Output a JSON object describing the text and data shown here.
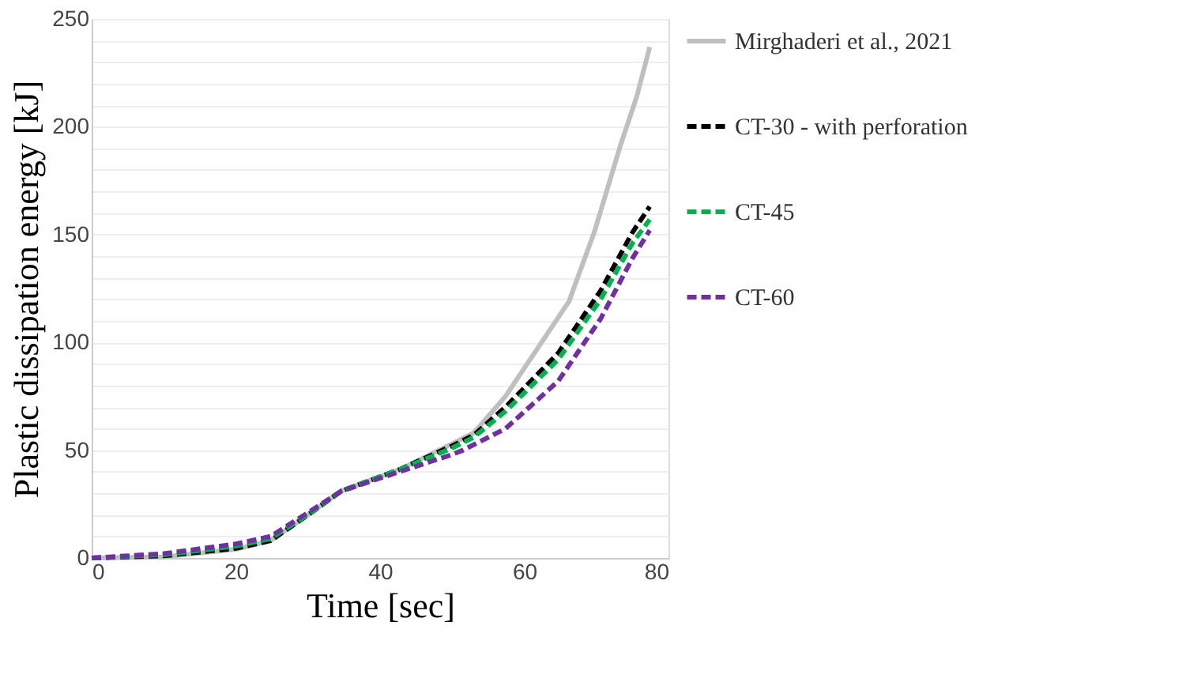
{
  "chart_data": {
    "type": "line",
    "xlabel": "Time  [sec]",
    "ylabel": "Plastic  dissipation  energy  [kJ]",
    "xlim": [
      0,
      80
    ],
    "xticks": [
      0,
      20,
      40,
      60,
      80
    ],
    "ylim": [
      0,
      250
    ],
    "yticks": [
      0,
      {
        "value": 10,
        "label": null
      },
      {
        "value": 20,
        "label": null
      },
      {
        "value": 30,
        "label": null
      },
      {
        "value": 40,
        "label": null
      },
      50,
      {
        "value": 60,
        "label": null
      },
      {
        "value": 70,
        "label": null
      },
      {
        "value": 80,
        "label": null
      },
      {
        "value": 90,
        "label": null
      },
      100,
      {
        "value": 110,
        "label": null
      },
      {
        "value": 120,
        "label": null
      },
      {
        "value": 130,
        "label": null
      },
      {
        "value": 140,
        "label": null
      },
      150,
      {
        "value": 160,
        "label": null
      },
      {
        "value": 170,
        "label": null
      },
      {
        "value": 180,
        "label": null
      },
      {
        "value": 190,
        "label": null
      },
      200,
      {
        "value": 210,
        "label": null
      },
      {
        "value": 220,
        "label": null
      },
      {
        "value": 230,
        "label": null
      },
      {
        "value": 240,
        "label": null
      },
      250
    ],
    "grid": "y",
    "legend": "right",
    "marker": "none",
    "series": [
      {
        "name": "Mirghaderi et al., 2021",
        "color": "#bfbfbf",
        "line_style": "solid",
        "x": [
          0,
          10,
          20,
          24.8,
          30,
          34.6,
          42.7,
          50,
          53,
          57.4,
          61.8,
          66.2,
          69.7,
          73.4,
          75.6,
          77.4
        ],
        "values": [
          0,
          0.5,
          4,
          8,
          20,
          31,
          41,
          53,
          58,
          75,
          97,
          119,
          151,
          192,
          214,
          237
        ]
      },
      {
        "name": "CT-30 - with perforation",
        "color": "#000000",
        "line_style": "dashed",
        "x": [
          0,
          10,
          20,
          24.8,
          30,
          34.6,
          42.7,
          50,
          53,
          57.4,
          64.7,
          70.6,
          75,
          77.4
        ],
        "values": [
          0,
          1,
          4.5,
          8,
          20,
          31,
          41,
          52,
          57,
          70,
          95,
          124,
          151,
          163
        ]
      },
      {
        "name": "CT-45",
        "color": "#00b050",
        "line_style": "dashed",
        "x": [
          0,
          10,
          20,
          24.8,
          30,
          34.6,
          42.7,
          50,
          53,
          57.4,
          64.7,
          70.6,
          75,
          77.4
        ],
        "values": [
          0,
          1.5,
          5.5,
          9,
          20,
          31,
          41,
          51,
          56,
          68,
          92,
          120,
          146,
          157
        ]
      },
      {
        "name": "CT-60",
        "color": "#7030a0",
        "line_style": "dashed",
        "x": [
          0,
          10,
          20,
          24.8,
          30,
          34.6,
          42.7,
          50,
          51.5,
          57.4,
          64.7,
          70.6,
          75,
          77.4
        ],
        "values": [
          0,
          2,
          6.5,
          10,
          21,
          31,
          40,
          48,
          50,
          60,
          82,
          111,
          139,
          152
        ]
      }
    ]
  }
}
